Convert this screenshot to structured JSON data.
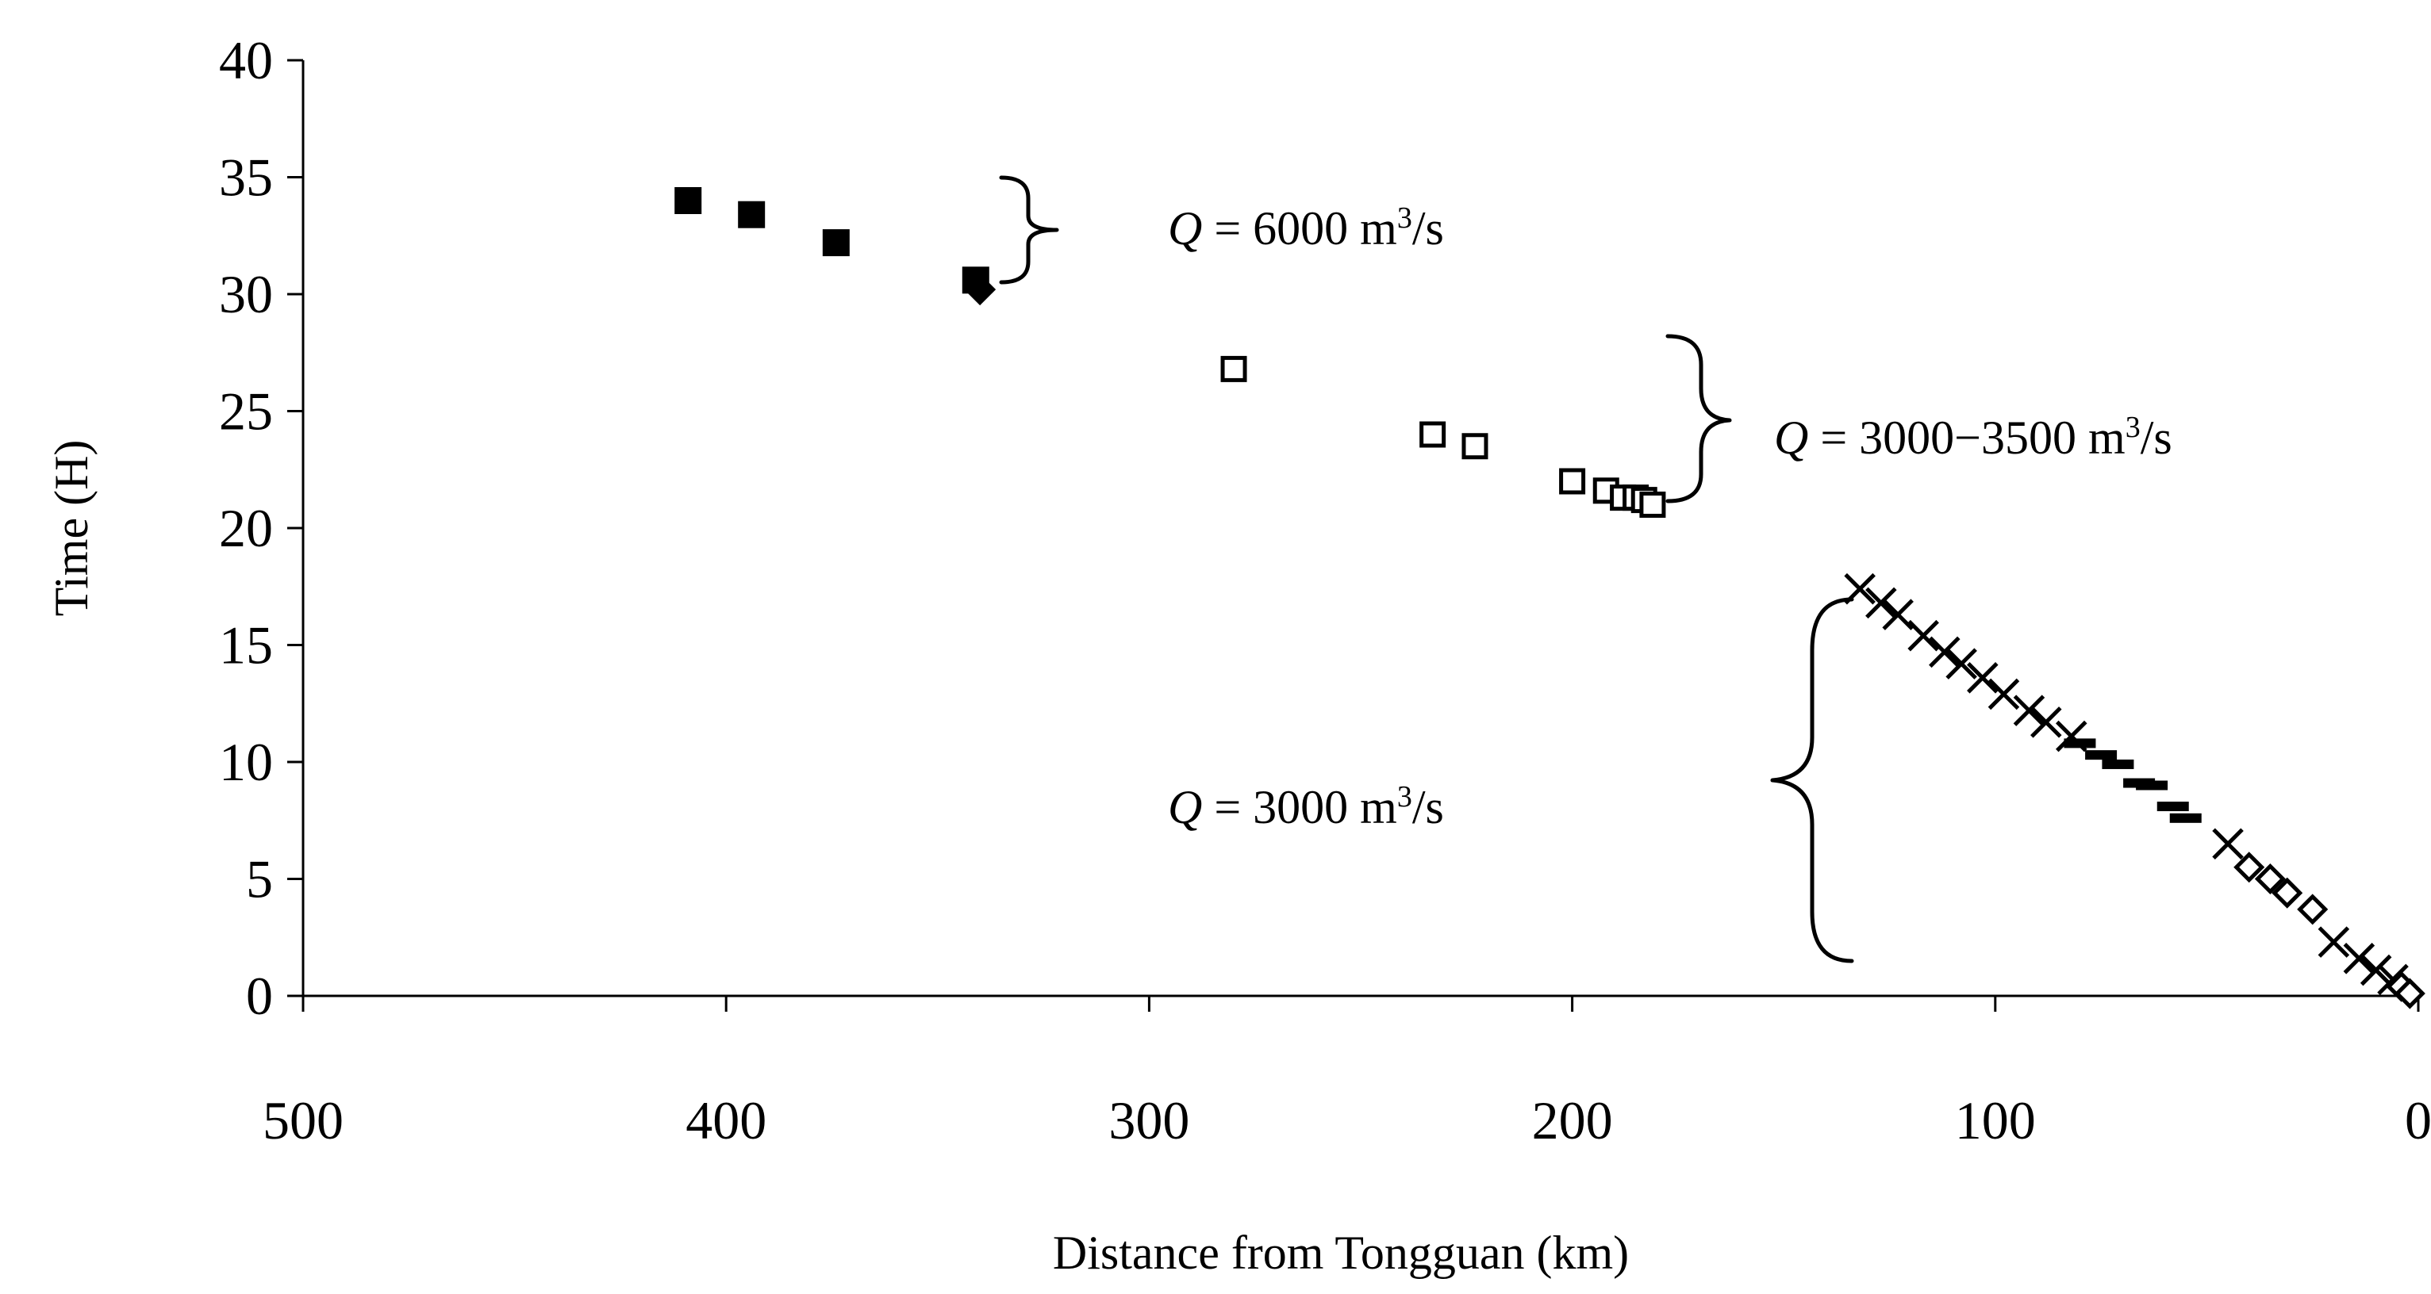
{
  "chart_data": {
    "type": "scatter",
    "title": "",
    "xlabel": "Distance from Tongguan (km)",
    "ylabel": "Time (H)",
    "xlim": [
      500,
      0
    ],
    "ylim": [
      0,
      40
    ],
    "x_reversed": true,
    "x_ticks": [
      "500",
      "400",
      "300",
      "200",
      "100",
      "0"
    ],
    "y_ticks": [
      "0",
      "5",
      "10",
      "15",
      "20",
      "25",
      "30",
      "35",
      "40"
    ],
    "grid": false,
    "legend": "none",
    "series": [
      {
        "marker": "filled-square",
        "points": [
          [
            409,
            34
          ],
          [
            394,
            33.4
          ],
          [
            374,
            32.2
          ],
          [
            341,
            30.6
          ]
        ]
      },
      {
        "marker": "filled-diamond",
        "points": [
          [
            340,
            30.2
          ]
        ]
      },
      {
        "marker": "open-square",
        "points": [
          [
            280,
            26.8
          ],
          [
            233,
            24
          ],
          [
            223,
            23.5
          ],
          [
            200,
            22
          ],
          [
            192,
            21.6
          ],
          [
            188,
            21.3
          ],
          [
            185,
            21.3
          ],
          [
            183,
            21.2
          ],
          [
            181,
            21
          ]
        ]
      },
      {
        "marker": "cross",
        "points": [
          [
            132,
            17.4
          ],
          [
            127,
            16.8
          ],
          [
            123,
            16.3
          ],
          [
            117,
            15.4
          ],
          [
            112,
            14.7
          ],
          [
            108,
            14.2
          ],
          [
            103,
            13.6
          ],
          [
            98,
            12.9
          ],
          [
            92,
            12.2
          ],
          [
            88,
            11.7
          ],
          [
            82,
            11.1
          ],
          [
            45,
            6.5
          ],
          [
            20,
            2.3
          ],
          [
            14,
            1.6
          ],
          [
            10,
            1.1
          ],
          [
            6,
            0.7
          ]
        ]
      },
      {
        "marker": "dash",
        "points": [
          [
            80,
            10.8
          ],
          [
            75,
            10.3
          ],
          [
            71,
            9.9
          ],
          [
            66,
            9.1
          ],
          [
            63,
            9
          ],
          [
            58,
            8.1
          ],
          [
            55,
            7.6
          ]
        ]
      },
      {
        "marker": "open-diamond",
        "points": [
          [
            40,
            5.5
          ],
          [
            35,
            5
          ],
          [
            31,
            4.4
          ],
          [
            25,
            3.7
          ],
          [
            4,
            0.4
          ],
          [
            2,
            0.1
          ]
        ]
      }
    ],
    "annotations": [
      {
        "pre": "Q",
        "text": " = 6000 m",
        "sup": "3",
        "post": "/s"
      },
      {
        "pre": "Q",
        "text": " = 3000−3500 m",
        "sup": "3",
        "post": "/s"
      },
      {
        "pre": "Q",
        "text": " = 3000 m",
        "sup": "3",
        "post": "/s"
      }
    ]
  }
}
